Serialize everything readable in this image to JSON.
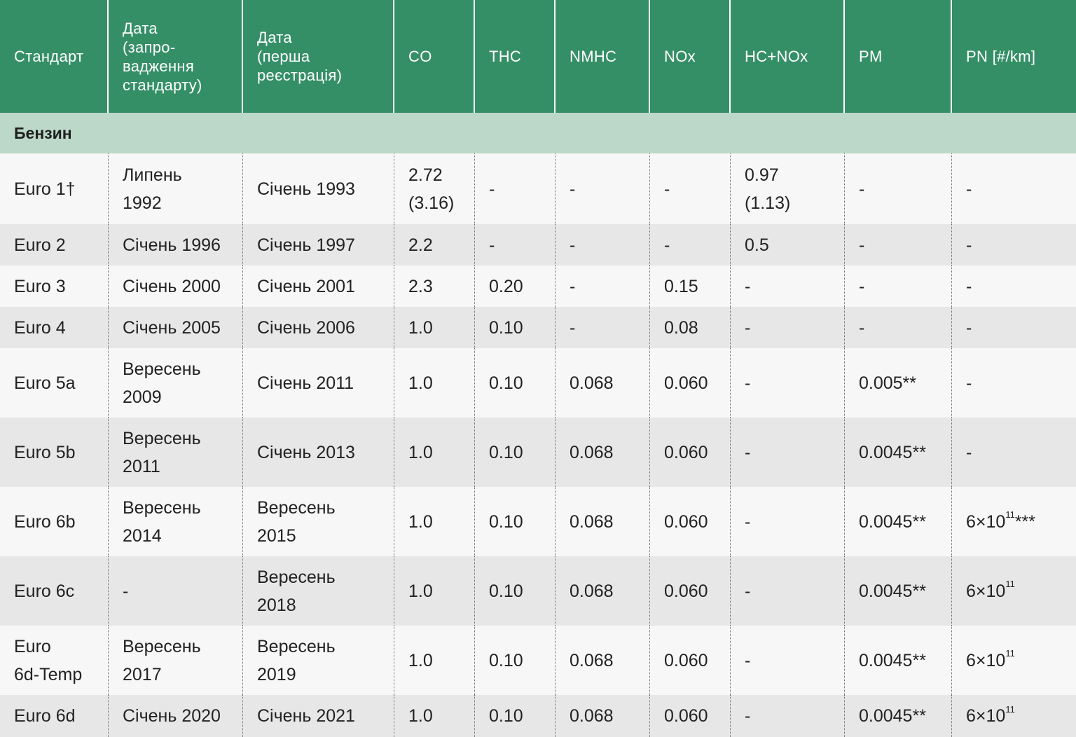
{
  "headers": [
    "Стандарт",
    "Дата\n(запро-\nвадження\nстандарту)",
    "Дата\n(перша\nреєстрація)",
    "CO",
    "THC",
    "NMHC",
    "NOx",
    "HC+NOx",
    "PM",
    "PN [#/km]"
  ],
  "section_label": "Бензин",
  "rows": [
    {
      "std": "Euro 1†",
      "intro": "Липень\n1992",
      "reg": "Січень 1993",
      "co": "2.72\n(3.16)",
      "thc": "-",
      "nmhc": "-",
      "nox": "-",
      "hcnox": "0.97\n(1.13)",
      "pm": "-",
      "pn_base": "-",
      "pn_exp": "",
      "pn_suffix": ""
    },
    {
      "std": "Euro 2",
      "intro": "Січень 1996",
      "reg": "Січень 1997",
      "co": "2.2",
      "thc": "-",
      "nmhc": "-",
      "nox": "-",
      "hcnox": "0.5",
      "pm": "-",
      "pn_base": "-",
      "pn_exp": "",
      "pn_suffix": ""
    },
    {
      "std": "Euro 3",
      "intro": "Січень 2000",
      "reg": "Січень 2001",
      "co": "2.3",
      "thc": "0.20",
      "nmhc": "-",
      "nox": "0.15",
      "hcnox": "-",
      "pm": "-",
      "pn_base": "-",
      "pn_exp": "",
      "pn_suffix": ""
    },
    {
      "std": "Euro 4",
      "intro": "Січень 2005",
      "reg": "Січень 2006",
      "co": "1.0",
      "thc": "0.10",
      "nmhc": "-",
      "nox": "0.08",
      "hcnox": "-",
      "pm": "-",
      "pn_base": "-",
      "pn_exp": "",
      "pn_suffix": ""
    },
    {
      "std": "Euro 5a",
      "intro": "Вересень\n2009",
      "reg": "Січень 2011",
      "co": "1.0",
      "thc": "0.10",
      "nmhc": "0.068",
      "nox": "0.060",
      "hcnox": "-",
      "pm": "0.005**",
      "pn_base": "-",
      "pn_exp": "",
      "pn_suffix": ""
    },
    {
      "std": "Euro 5b",
      "intro": "Вересень\n2011",
      "reg": "Січень 2013",
      "co": "1.0",
      "thc": "0.10",
      "nmhc": "0.068",
      "nox": "0.060",
      "hcnox": "-",
      "pm": "0.0045**",
      "pn_base": "-",
      "pn_exp": "",
      "pn_suffix": ""
    },
    {
      "std": "Euro 6b",
      "intro": "Вересень\n2014",
      "reg": "Вересень\n2015",
      "co": "1.0",
      "thc": "0.10",
      "nmhc": "0.068",
      "nox": "0.060",
      "hcnox": "-",
      "pm": "0.0045**",
      "pn_base": "6×10",
      "pn_exp": "11",
      "pn_suffix": "***"
    },
    {
      "std": "Euro 6c",
      "intro": "-",
      "reg": "Вересень\n2018",
      "co": "1.0",
      "thc": "0.10",
      "nmhc": "0.068",
      "nox": "0.060",
      "hcnox": "-",
      "pm": "0.0045**",
      "pn_base": "6×10",
      "pn_exp": "11",
      "pn_suffix": ""
    },
    {
      "std": "Euro\n6d-Temp",
      "intro": "Вересень\n2017",
      "reg": "Вересень\n2019",
      "co": "1.0",
      "thc": "0.10",
      "nmhc": "0.068",
      "nox": "0.060",
      "hcnox": "-",
      "pm": "0.0045**",
      "pn_base": "6×10",
      "pn_exp": "11",
      "pn_suffix": ""
    },
    {
      "std": "Euro 6d",
      "intro": "Січень 2020",
      "reg": "Січень 2021",
      "co": "1.0",
      "thc": "0.10",
      "nmhc": "0.068",
      "nox": "0.060",
      "hcnox": "-",
      "pm": "0.0045**",
      "pn_base": "6×10",
      "pn_exp": "11",
      "pn_suffix": ""
    }
  ],
  "colors": {
    "header_bg": "#358f66",
    "section_bg": "#bcd8c8",
    "row_light": "#f7f7f7",
    "row_dark": "#e7e7e7"
  }
}
